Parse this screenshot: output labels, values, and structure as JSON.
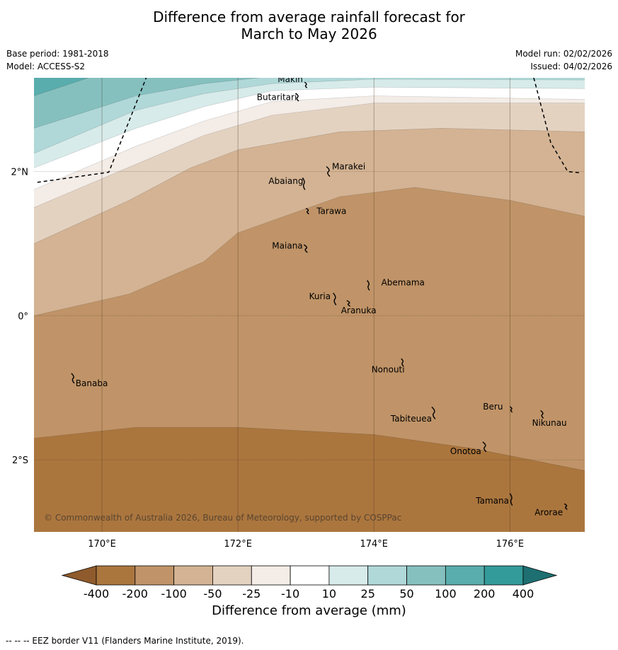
{
  "title_line1": "Difference from average rainfall forecast for",
  "title_line2": "March to May 2026",
  "meta_left": {
    "base_period": "Base period: 1981-2018",
    "model": "Model: ACCESS-S2"
  },
  "meta_right": {
    "model_run": "Model run: 02/02/2026",
    "issued": "Issued: 04/02/2026"
  },
  "map": {
    "lon_range": [
      169,
      177.1
    ],
    "lat_range": [
      -3.0,
      3.3
    ],
    "lon_ticks": [
      {
        "value": 170,
        "label": "170°E"
      },
      {
        "value": 172,
        "label": "172°E"
      },
      {
        "value": 174,
        "label": "174°E"
      },
      {
        "value": 176,
        "label": "176°E"
      }
    ],
    "lat_ticks": [
      {
        "value": 2,
        "label": "2°N"
      },
      {
        "value": 0,
        "label": "0°"
      },
      {
        "value": -2,
        "label": "2°S"
      }
    ],
    "copyright": "© Commonwealth of Australia 2026, Bureau of Meteorology, supported by COSPPac",
    "islands": [
      {
        "name": "Makin",
        "lon": 172.98,
        "lat": 3.2
      },
      {
        "name": "Butaritari",
        "lon": 172.85,
        "lat": 3.03
      },
      {
        "name": "Marakei",
        "lon": 173.3,
        "lat": 2.0
      },
      {
        "name": "Abaiang",
        "lon": 172.95,
        "lat": 1.83
      },
      {
        "name": "Tarawa",
        "lon": 173.0,
        "lat": 1.45
      },
      {
        "name": "Maiana",
        "lon": 172.97,
        "lat": 0.93
      },
      {
        "name": "Abemama",
        "lon": 173.9,
        "lat": 0.42
      },
      {
        "name": "Kuria",
        "lon": 173.4,
        "lat": 0.23
      },
      {
        "name": "Aranuka",
        "lon": 173.6,
        "lat": 0.17
      },
      {
        "name": "Nonouti",
        "lon": 174.4,
        "lat": -0.65
      },
      {
        "name": "Banaba",
        "lon": 169.55,
        "lat": -0.87
      },
      {
        "name": "Tabiteuea",
        "lon": 174.85,
        "lat": -1.35
      },
      {
        "name": "Beru",
        "lon": 176.0,
        "lat": -1.3
      },
      {
        "name": "Nikunau",
        "lon": 176.45,
        "lat": -1.37
      },
      {
        "name": "Onotoa",
        "lon": 175.6,
        "lat": -1.82
      },
      {
        "name": "Tamana",
        "lon": 176.0,
        "lat": -2.55
      },
      {
        "name": "Arorae",
        "lon": 176.8,
        "lat": -2.65
      }
    ],
    "eez_segments": [
      [
        [
          169.05,
          1.85
        ],
        [
          170.1,
          1.99
        ],
        [
          170.65,
          3.3
        ]
      ],
      [
        [
          176.35,
          3.3
        ],
        [
          176.6,
          2.4
        ],
        [
          176.85,
          2.0
        ],
        [
          177.05,
          1.98
        ]
      ]
    ]
  },
  "chart_data": {
    "type": "heatmap",
    "title": "Difference from average rainfall forecast for March to May 2026",
    "colorbar_label": "Difference from average (mm)",
    "colorbar_ticks": [
      "-400",
      "-200",
      "-100",
      "-50",
      "-25",
      "-10",
      "10",
      "25",
      "50",
      "100",
      "200",
      "400"
    ],
    "colors": [
      "#8f5b2c",
      "#ab763e",
      "#c09468",
      "#d3b393",
      "#e4d2c1",
      "#f3ece7",
      "#ffffff",
      "#d7ebea",
      "#b0d8d8",
      "#85c0bf",
      "#5aadad",
      "#339b9a",
      "#1e6f71"
    ],
    "contours": [
      {
        "level": "-400/-200",
        "lat_at_lon": [
          [
            169,
            -1.7
          ],
          [
            170.5,
            -1.55
          ],
          [
            172,
            -1.55
          ],
          [
            174,
            -1.65
          ],
          [
            175.5,
            -1.85
          ],
          [
            177.1,
            -2.15
          ]
        ]
      },
      {
        "level": "-200/-100",
        "lat_at_lon": [
          [
            169,
            0.0
          ],
          [
            170.4,
            0.3
          ],
          [
            171.5,
            0.75
          ],
          [
            172.0,
            1.15
          ],
          [
            173.5,
            1.65
          ],
          [
            174.6,
            1.78
          ],
          [
            176,
            1.6
          ],
          [
            177.1,
            1.38
          ]
        ]
      },
      {
        "level": "-100/-50",
        "lat_at_lon": [
          [
            169,
            1.0
          ],
          [
            170.4,
            1.6
          ],
          [
            171.3,
            2.05
          ],
          [
            172,
            2.3
          ],
          [
            173.5,
            2.55
          ],
          [
            175,
            2.6
          ],
          [
            177.1,
            2.55
          ]
        ]
      },
      {
        "level": "-50/-25",
        "lat_at_lon": [
          [
            169,
            1.5
          ],
          [
            170.5,
            2.1
          ],
          [
            171.5,
            2.5
          ],
          [
            172.5,
            2.78
          ],
          [
            174,
            2.95
          ],
          [
            177.1,
            2.95
          ]
        ]
      },
      {
        "level": "-25/-10",
        "lat_at_lon": [
          [
            169,
            1.75
          ],
          [
            170.5,
            2.35
          ],
          [
            171.5,
            2.7
          ],
          [
            172.5,
            2.97
          ],
          [
            174,
            3.05
          ],
          [
            177.1,
            3.0
          ]
        ]
      },
      {
        "level": "-10/10",
        "lat_at_lon": [
          [
            169,
            2.05
          ],
          [
            170.5,
            2.6
          ],
          [
            171.5,
            2.9
          ],
          [
            172.5,
            3.12
          ],
          [
            174,
            3.17
          ],
          [
            177.1,
            3.15
          ]
        ]
      },
      {
        "level": "10/25",
        "lat_at_lon": [
          [
            169,
            2.25
          ],
          [
            170.5,
            2.85
          ],
          [
            171.5,
            3.08
          ],
          [
            172.5,
            3.22
          ],
          [
            174,
            3.28
          ],
          [
            177.1,
            3.27
          ]
        ]
      },
      {
        "level": "25/50",
        "lat_at_lon": [
          [
            169,
            2.6
          ],
          [
            170.5,
            3.05
          ],
          [
            171.5,
            3.22
          ],
          [
            172.5,
            3.32
          ],
          [
            174,
            3.37
          ],
          [
            177.1,
            3.37
          ]
        ]
      },
      {
        "level": "50/100",
        "lat_at_lon": [
          [
            169,
            3.05
          ],
          [
            169.8,
            3.3
          ],
          [
            170.6,
            3.46
          ],
          [
            172,
            3.5
          ],
          [
            177.1,
            3.5
          ]
        ]
      }
    ]
  },
  "colorbar_title": "Difference from average (mm)",
  "footnote": "--  --  -- EEZ border V11 (Flanders Marine Institute, 2019)."
}
